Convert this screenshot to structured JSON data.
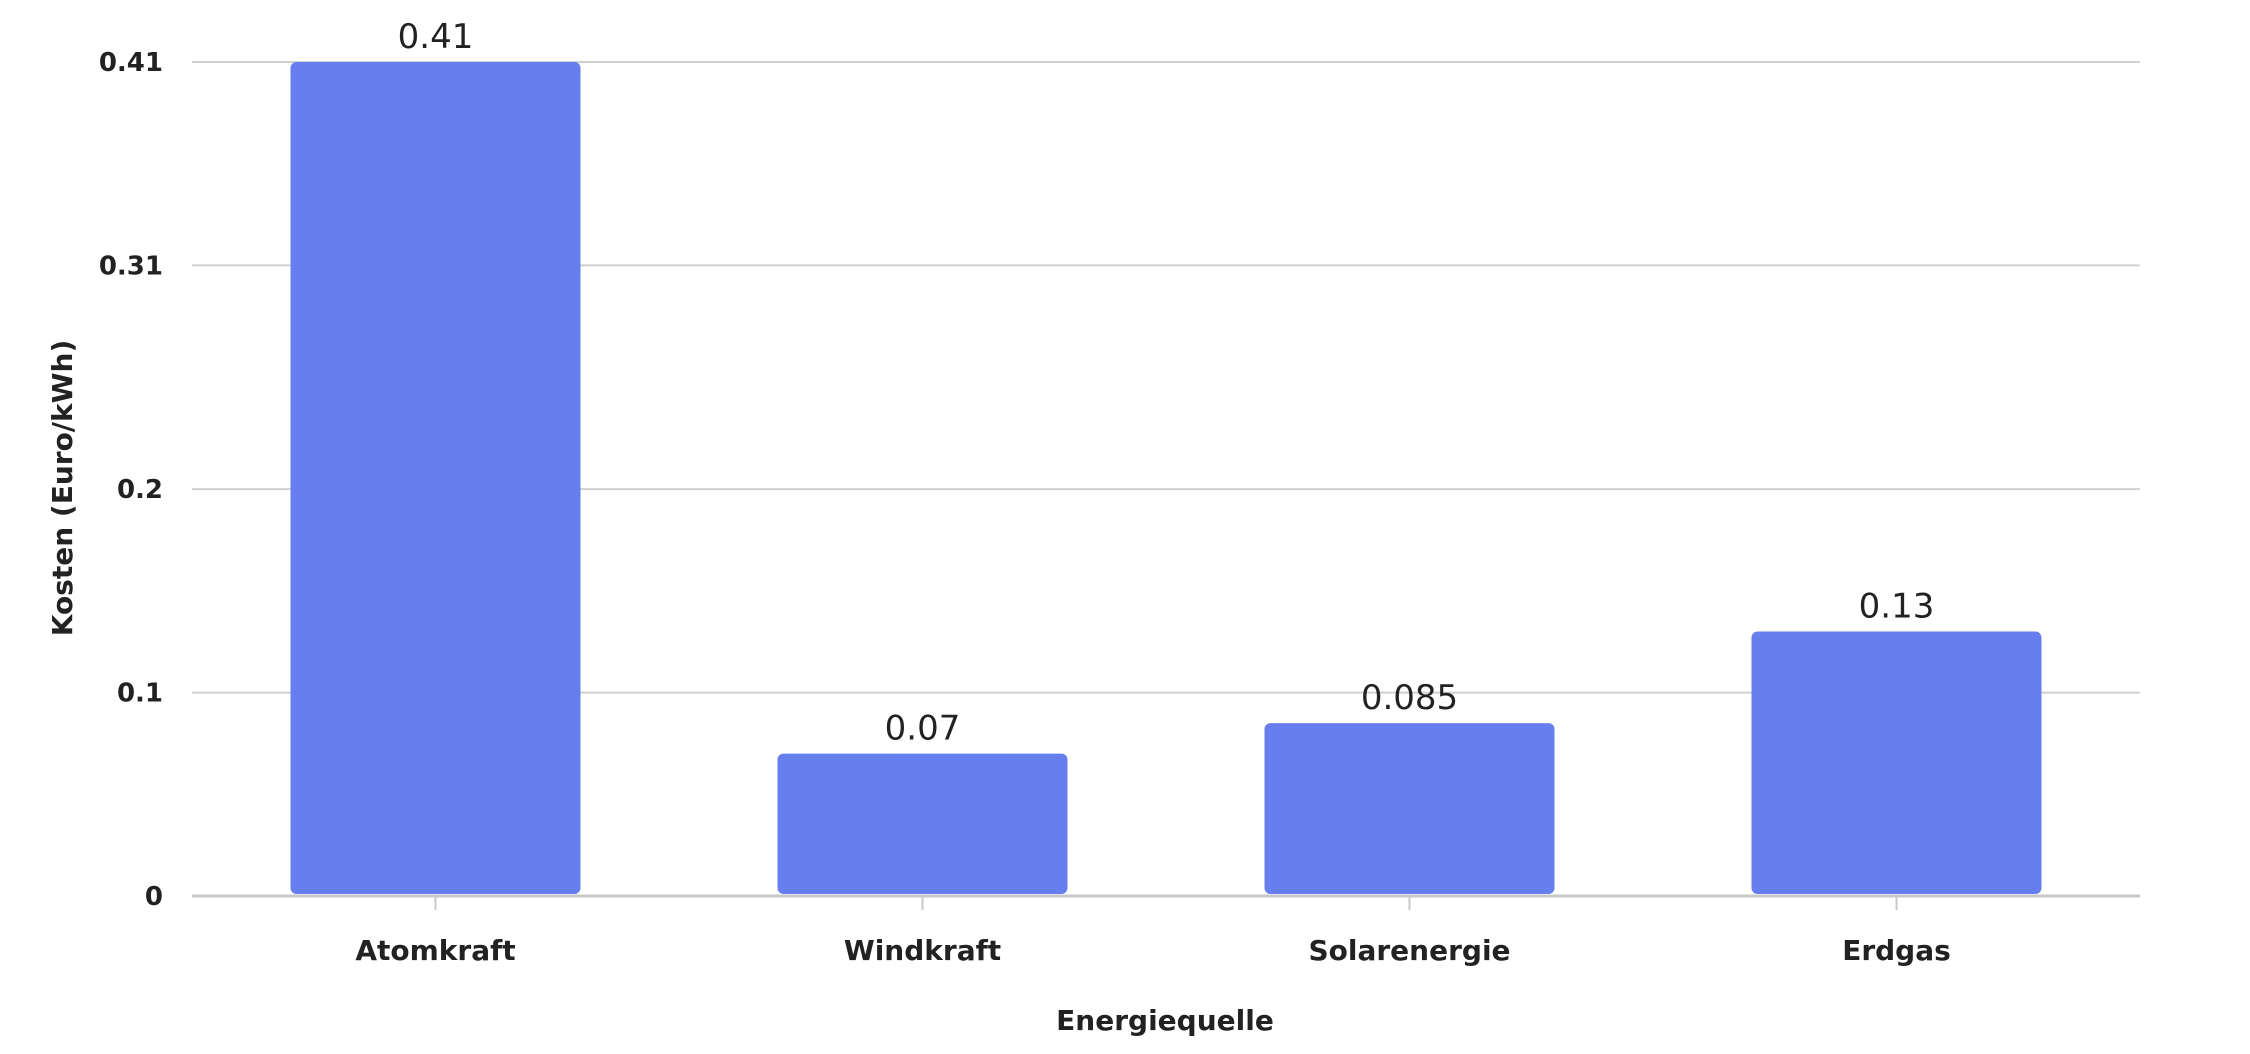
{
  "chart_data": {
    "type": "bar",
    "categories": [
      "Atomkraft",
      "Windkraft",
      "Solarenergie",
      "Erdgas"
    ],
    "values": [
      0.41,
      0.07,
      0.085,
      0.13
    ],
    "value_labels": [
      "0.41",
      "0.07",
      "0.085",
      "0.13"
    ],
    "title": "",
    "xlabel": "Energiequelle",
    "ylabel": "Kosten (Euro/kWh)",
    "ylim": [
      0,
      0.41
    ],
    "yticks": [
      0,
      0.1,
      0.2,
      0.31,
      0.41
    ],
    "ytick_labels": [
      "0",
      "0.1",
      "0.2",
      "0.31",
      "0.41"
    ],
    "grid": true,
    "legend": "none",
    "colors": {
      "bar": "#667eee",
      "grid": "#d0d0d0",
      "axis": "#c8c8c8",
      "text": "#222222"
    }
  }
}
